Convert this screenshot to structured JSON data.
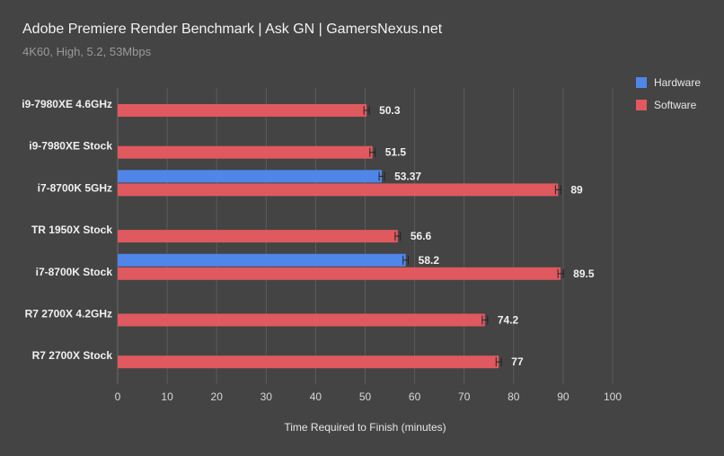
{
  "chart_data": {
    "type": "bar",
    "orientation": "horizontal",
    "title": "Adobe Premiere Render Benchmark | Ask GN | GamersNexus.net",
    "subtitle": "4K60, High, 5.2, 53Mbps",
    "xlabel": "Time Required to Finish (minutes)",
    "ylabel": "",
    "xlim": [
      0,
      100
    ],
    "xticks": [
      0,
      10,
      20,
      30,
      40,
      50,
      60,
      70,
      80,
      90,
      100
    ],
    "grid": true,
    "legend_position": "top-right",
    "categories": [
      "i9-7980XE 4.6GHz",
      "i9-7980XE Stock",
      "i7-8700K 5GHz",
      "TR 1950X Stock",
      "i7-8700K Stock",
      "R7 2700X 4.2GHz",
      "R7 2700X Stock"
    ],
    "series": [
      {
        "name": "Hardware",
        "color": "#4f86e8",
        "values": [
          null,
          null,
          53.37,
          null,
          58.2,
          null,
          null
        ]
      },
      {
        "name": "Software",
        "color": "#e0595e",
        "values": [
          50.3,
          51.5,
          89,
          56.6,
          89.5,
          74.2,
          77
        ]
      }
    ],
    "value_labels": {
      "Hardware": [
        "",
        "",
        "53.37",
        "",
        "58.2",
        "",
        ""
      ],
      "Software": [
        "50.3",
        "51.5",
        "89",
        "56.6",
        "89.5",
        "74.2",
        "77"
      ]
    }
  }
}
